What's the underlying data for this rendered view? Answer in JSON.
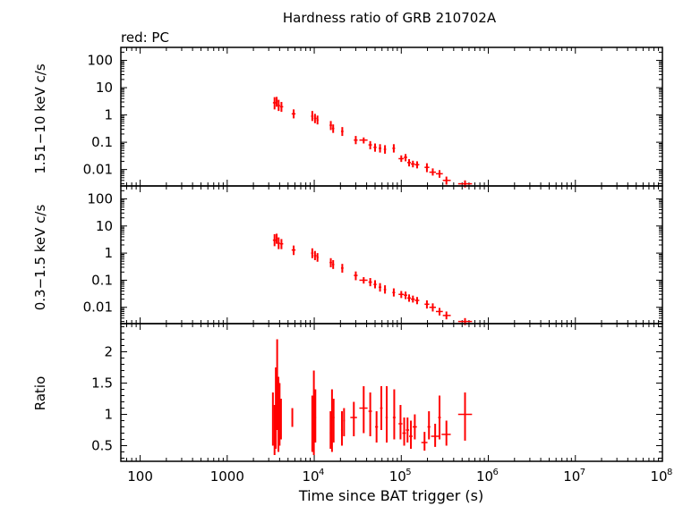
{
  "chart_data": {
    "type": "scatter",
    "title": "Hardness ratio of GRB 210702A",
    "subtitle": "red: PC",
    "xlabel": "Time since BAT trigger (s)",
    "x_scale": "log",
    "xlim": [
      60,
      100000000
    ],
    "x_ticks": [
      {
        "v": 100,
        "base": "100",
        "exp": ""
      },
      {
        "v": 1000,
        "base": "1000",
        "exp": ""
      },
      {
        "v": 10000,
        "base": "10",
        "exp": "4"
      },
      {
        "v": 100000,
        "base": "10",
        "exp": "5"
      },
      {
        "v": 1000000,
        "base": "10",
        "exp": "6"
      },
      {
        "v": 10000000,
        "base": "10",
        "exp": "7"
      },
      {
        "v": 100000000,
        "base": "10",
        "exp": "8"
      }
    ],
    "series_color": "#ff0000",
    "panels": [
      {
        "ylabel": "1.51−10 keV c/s",
        "y_scale": "log",
        "ylim": [
          0.0025,
          300
        ],
        "y_ticks": [
          {
            "v": 100,
            "label": "100"
          },
          {
            "v": 10,
            "label": "10"
          },
          {
            "v": 1,
            "label": "1"
          },
          {
            "v": 0.1,
            "label": "0.1"
          },
          {
            "v": 0.01,
            "label": "0.01"
          }
        ],
        "points": [
          {
            "x": 3500,
            "xlo": 3350,
            "xhi": 3650,
            "y": 2.8,
            "ylo": 1.6,
            "yhi": 4.5
          },
          {
            "x": 3700,
            "xlo": 3650,
            "xhi": 3800,
            "y": 3.2,
            "ylo": 2.0,
            "yhi": 4.6
          },
          {
            "x": 3900,
            "xlo": 3800,
            "xhi": 4050,
            "y": 2.2,
            "ylo": 1.4,
            "yhi": 3.6
          },
          {
            "x": 4200,
            "xlo": 4050,
            "xhi": 4400,
            "y": 2.0,
            "ylo": 1.3,
            "yhi": 3.0
          },
          {
            "x": 5800,
            "xlo": 5500,
            "xhi": 6100,
            "y": 1.1,
            "ylo": 0.75,
            "yhi": 1.6
          },
          {
            "x": 9500,
            "xlo": 9200,
            "xhi": 9800,
            "y": 0.9,
            "ylo": 0.6,
            "yhi": 1.4
          },
          {
            "x": 10200,
            "xlo": 9900,
            "xhi": 10600,
            "y": 0.75,
            "ylo": 0.5,
            "yhi": 1.1
          },
          {
            "x": 10900,
            "xlo": 10600,
            "xhi": 11200,
            "y": 0.65,
            "ylo": 0.45,
            "yhi": 0.95
          },
          {
            "x": 15500,
            "xlo": 15000,
            "xhi": 16000,
            "y": 0.42,
            "ylo": 0.28,
            "yhi": 0.6
          },
          {
            "x": 16500,
            "xlo": 16000,
            "xhi": 17000,
            "y": 0.32,
            "ylo": 0.22,
            "yhi": 0.45
          },
          {
            "x": 21000,
            "xlo": 20300,
            "xhi": 21700,
            "y": 0.25,
            "ylo": 0.17,
            "yhi": 0.36
          },
          {
            "x": 30000,
            "xlo": 28500,
            "xhi": 31500,
            "y": 0.12,
            "ylo": 0.085,
            "yhi": 0.17
          },
          {
            "x": 37000,
            "xlo": 33000,
            "xhi": 41000,
            "y": 0.12,
            "ylo": 0.09,
            "yhi": 0.15
          },
          {
            "x": 44000,
            "xlo": 42000,
            "xhi": 46000,
            "y": 0.08,
            "ylo": 0.055,
            "yhi": 0.11
          },
          {
            "x": 50000,
            "xlo": 48000,
            "xhi": 52000,
            "y": 0.065,
            "ylo": 0.045,
            "yhi": 0.09
          },
          {
            "x": 57000,
            "xlo": 55000,
            "xhi": 59000,
            "y": 0.06,
            "ylo": 0.042,
            "yhi": 0.085
          },
          {
            "x": 65000,
            "xlo": 63000,
            "xhi": 67000,
            "y": 0.055,
            "ylo": 0.038,
            "yhi": 0.078
          },
          {
            "x": 82000,
            "xlo": 79000,
            "xhi": 85000,
            "y": 0.06,
            "ylo": 0.042,
            "yhi": 0.085
          },
          {
            "x": 100000,
            "xlo": 93000,
            "xhi": 107000,
            "y": 0.025,
            "ylo": 0.019,
            "yhi": 0.033
          },
          {
            "x": 112000,
            "xlo": 107000,
            "xhi": 117000,
            "y": 0.028,
            "ylo": 0.02,
            "yhi": 0.037
          },
          {
            "x": 123000,
            "xlo": 117000,
            "xhi": 129000,
            "y": 0.018,
            "ylo": 0.013,
            "yhi": 0.024
          },
          {
            "x": 136000,
            "xlo": 129000,
            "xhi": 143000,
            "y": 0.016,
            "ylo": 0.012,
            "yhi": 0.021
          },
          {
            "x": 152000,
            "xlo": 143000,
            "xhi": 161000,
            "y": 0.015,
            "ylo": 0.011,
            "yhi": 0.02
          },
          {
            "x": 197000,
            "xlo": 185000,
            "xhi": 210000,
            "y": 0.012,
            "ylo": 0.008,
            "yhi": 0.017
          },
          {
            "x": 230000,
            "xlo": 210000,
            "xhi": 250000,
            "y": 0.008,
            "ylo": 0.006,
            "yhi": 0.011
          },
          {
            "x": 275000,
            "xlo": 250000,
            "xhi": 300000,
            "y": 0.007,
            "ylo": 0.005,
            "yhi": 0.0095
          },
          {
            "x": 330000,
            "xlo": 300000,
            "xhi": 370000,
            "y": 0.004,
            "ylo": 0.0028,
            "yhi": 0.0055
          },
          {
            "x": 540000,
            "xlo": 450000,
            "xhi": 650000,
            "y": 0.003,
            "ylo": 0.0022,
            "yhi": 0.004
          }
        ]
      },
      {
        "ylabel": "0.3−1.5 keV c/s",
        "y_scale": "log",
        "ylim": [
          0.0025,
          300
        ],
        "y_ticks": [
          {
            "v": 100,
            "label": "100"
          },
          {
            "v": 10,
            "label": "10"
          },
          {
            "v": 1,
            "label": "1"
          },
          {
            "v": 0.1,
            "label": "0.1"
          },
          {
            "v": 0.01,
            "label": "0.01"
          }
        ],
        "points": [
          {
            "x": 3500,
            "xlo": 3350,
            "xhi": 3650,
            "y": 3.0,
            "ylo": 1.8,
            "yhi": 5.0
          },
          {
            "x": 3700,
            "xlo": 3650,
            "xhi": 3800,
            "y": 3.5,
            "ylo": 2.2,
            "yhi": 5.2
          },
          {
            "x": 3900,
            "xlo": 3800,
            "xhi": 4050,
            "y": 2.3,
            "ylo": 1.4,
            "yhi": 3.8
          },
          {
            "x": 4200,
            "xlo": 4050,
            "xhi": 4400,
            "y": 2.2,
            "ylo": 1.4,
            "yhi": 3.3
          },
          {
            "x": 5800,
            "xlo": 5500,
            "xhi": 6100,
            "y": 1.3,
            "ylo": 0.85,
            "yhi": 1.9
          },
          {
            "x": 9500,
            "xlo": 9200,
            "xhi": 9800,
            "y": 1.0,
            "ylo": 0.65,
            "yhi": 1.5
          },
          {
            "x": 10200,
            "xlo": 9900,
            "xhi": 10600,
            "y": 0.8,
            "ylo": 0.55,
            "yhi": 1.2
          },
          {
            "x": 10900,
            "xlo": 10600,
            "xhi": 11200,
            "y": 0.7,
            "ylo": 0.48,
            "yhi": 1.0
          },
          {
            "x": 15500,
            "xlo": 15000,
            "xhi": 16000,
            "y": 0.45,
            "ylo": 0.3,
            "yhi": 0.65
          },
          {
            "x": 16500,
            "xlo": 16000,
            "xhi": 17000,
            "y": 0.38,
            "ylo": 0.26,
            "yhi": 0.55
          },
          {
            "x": 21000,
            "xlo": 20300,
            "xhi": 21700,
            "y": 0.28,
            "ylo": 0.19,
            "yhi": 0.4
          },
          {
            "x": 30000,
            "xlo": 28500,
            "xhi": 31500,
            "y": 0.15,
            "ylo": 0.1,
            "yhi": 0.21
          },
          {
            "x": 37000,
            "xlo": 33000,
            "xhi": 41000,
            "y": 0.1,
            "ylo": 0.075,
            "yhi": 0.13
          },
          {
            "x": 44000,
            "xlo": 42000,
            "xhi": 46000,
            "y": 0.085,
            "ylo": 0.06,
            "yhi": 0.12
          },
          {
            "x": 50000,
            "xlo": 48000,
            "xhi": 52000,
            "y": 0.07,
            "ylo": 0.05,
            "yhi": 0.1
          },
          {
            "x": 57000,
            "xlo": 55000,
            "xhi": 59000,
            "y": 0.055,
            "ylo": 0.038,
            "yhi": 0.078
          },
          {
            "x": 65000,
            "xlo": 63000,
            "xhi": 67000,
            "y": 0.045,
            "ylo": 0.032,
            "yhi": 0.065
          },
          {
            "x": 82000,
            "xlo": 79000,
            "xhi": 85000,
            "y": 0.035,
            "ylo": 0.025,
            "yhi": 0.05
          },
          {
            "x": 100000,
            "xlo": 93000,
            "xhi": 107000,
            "y": 0.03,
            "ylo": 0.022,
            "yhi": 0.04
          },
          {
            "x": 112000,
            "xlo": 107000,
            "xhi": 117000,
            "y": 0.028,
            "ylo": 0.02,
            "yhi": 0.038
          },
          {
            "x": 123000,
            "xlo": 117000,
            "xhi": 129000,
            "y": 0.022,
            "ylo": 0.016,
            "yhi": 0.03
          },
          {
            "x": 136000,
            "xlo": 129000,
            "xhi": 143000,
            "y": 0.02,
            "ylo": 0.015,
            "yhi": 0.027
          },
          {
            "x": 152000,
            "xlo": 143000,
            "xhi": 161000,
            "y": 0.018,
            "ylo": 0.013,
            "yhi": 0.024
          },
          {
            "x": 197000,
            "xlo": 185000,
            "xhi": 210000,
            "y": 0.013,
            "ylo": 0.009,
            "yhi": 0.018
          },
          {
            "x": 230000,
            "xlo": 210000,
            "xhi": 250000,
            "y": 0.01,
            "ylo": 0.007,
            "yhi": 0.014
          },
          {
            "x": 275000,
            "xlo": 250000,
            "xhi": 300000,
            "y": 0.007,
            "ylo": 0.005,
            "yhi": 0.0095
          },
          {
            "x": 330000,
            "xlo": 300000,
            "xhi": 370000,
            "y": 0.005,
            "ylo": 0.0036,
            "yhi": 0.007
          },
          {
            "x": 540000,
            "xlo": 450000,
            "xhi": 650000,
            "y": 0.003,
            "ylo": 0.0022,
            "yhi": 0.004
          }
        ]
      },
      {
        "ylabel": "Ratio",
        "y_scale": "linear",
        "ylim": [
          0.25,
          2.45
        ],
        "y_ticks": [
          {
            "v": 2,
            "label": "2"
          },
          {
            "v": 1.5,
            "label": "1.5"
          },
          {
            "v": 1,
            "label": "1"
          },
          {
            "v": 0.5,
            "label": "0.5"
          }
        ],
        "points": [
          {
            "x": 3350,
            "xlo": 3300,
            "xhi": 3400,
            "y": 0.95,
            "ylo": 0.5,
            "yhi": 1.35
          },
          {
            "x": 3500,
            "xlo": 3450,
            "xhi": 3550,
            "y": 0.75,
            "ylo": 0.35,
            "yhi": 1.15
          },
          {
            "x": 3620,
            "xlo": 3570,
            "xhi": 3670,
            "y": 0.85,
            "ylo": 0.45,
            "yhi": 1.75
          },
          {
            "x": 3750,
            "xlo": 3700,
            "xhi": 3800,
            "y": 1.45,
            "ylo": 0.75,
            "yhi": 2.2
          },
          {
            "x": 3880,
            "xlo": 3830,
            "xhi": 3930,
            "y": 0.9,
            "ylo": 0.4,
            "yhi": 1.6
          },
          {
            "x": 4000,
            "xlo": 3950,
            "xhi": 4050,
            "y": 1.0,
            "ylo": 0.5,
            "yhi": 1.5
          },
          {
            "x": 4150,
            "xlo": 4100,
            "xhi": 4200,
            "y": 0.9,
            "ylo": 0.6,
            "yhi": 1.25
          },
          {
            "x": 5600,
            "xlo": 5500,
            "xhi": 5700,
            "y": 0.95,
            "ylo": 0.8,
            "yhi": 1.1
          },
          {
            "x": 9500,
            "xlo": 9300,
            "xhi": 9700,
            "y": 0.85,
            "ylo": 0.4,
            "yhi": 1.3
          },
          {
            "x": 9900,
            "xlo": 9700,
            "xhi": 10100,
            "y": 1.0,
            "ylo": 0.35,
            "yhi": 1.7
          },
          {
            "x": 10300,
            "xlo": 10100,
            "xhi": 10500,
            "y": 0.95,
            "ylo": 0.55,
            "yhi": 1.4
          },
          {
            "x": 15400,
            "xlo": 15100,
            "xhi": 15700,
            "y": 0.7,
            "ylo": 0.45,
            "yhi": 1.05
          },
          {
            "x": 16000,
            "xlo": 15700,
            "xhi": 16300,
            "y": 0.9,
            "ylo": 0.4,
            "yhi": 1.4
          },
          {
            "x": 16700,
            "xlo": 16300,
            "xhi": 17100,
            "y": 0.95,
            "ylo": 0.55,
            "yhi": 1.25
          },
          {
            "x": 20800,
            "xlo": 20300,
            "xhi": 21300,
            "y": 0.75,
            "ylo": 0.5,
            "yhi": 1.05
          },
          {
            "x": 22000,
            "xlo": 21500,
            "xhi": 22500,
            "y": 0.9,
            "ylo": 0.65,
            "yhi": 1.1
          },
          {
            "x": 28500,
            "xlo": 26000,
            "xhi": 31000,
            "y": 0.95,
            "ylo": 0.65,
            "yhi": 1.2
          },
          {
            "x": 37000,
            "xlo": 33000,
            "xhi": 41000,
            "y": 1.1,
            "ylo": 0.7,
            "yhi": 1.45
          },
          {
            "x": 44000,
            "xlo": 42000,
            "xhi": 46000,
            "y": 1.05,
            "ylo": 0.65,
            "yhi": 1.35
          },
          {
            "x": 52000,
            "xlo": 50000,
            "xhi": 54000,
            "y": 0.8,
            "ylo": 0.55,
            "yhi": 1.05
          },
          {
            "x": 59000,
            "xlo": 57000,
            "xhi": 61000,
            "y": 1.1,
            "ylo": 0.75,
            "yhi": 1.45
          },
          {
            "x": 68000,
            "xlo": 66000,
            "xhi": 70000,
            "y": 0.95,
            "ylo": 0.55,
            "yhi": 1.45
          },
          {
            "x": 83000,
            "xlo": 80000,
            "xhi": 86000,
            "y": 0.95,
            "ylo": 0.6,
            "yhi": 1.4
          },
          {
            "x": 98000,
            "xlo": 93000,
            "xhi": 103000,
            "y": 0.85,
            "ylo": 0.6,
            "yhi": 1.15
          },
          {
            "x": 108000,
            "xlo": 103000,
            "xhi": 113000,
            "y": 0.7,
            "ylo": 0.5,
            "yhi": 0.95
          },
          {
            "x": 118000,
            "xlo": 113000,
            "xhi": 123000,
            "y": 0.75,
            "ylo": 0.55,
            "yhi": 0.95
          },
          {
            "x": 129000,
            "xlo": 123000,
            "xhi": 135000,
            "y": 0.65,
            "ylo": 0.45,
            "yhi": 0.9
          },
          {
            "x": 143000,
            "xlo": 135000,
            "xhi": 151000,
            "y": 0.8,
            "ylo": 0.6,
            "yhi": 1.0
          },
          {
            "x": 185000,
            "xlo": 170000,
            "xhi": 200000,
            "y": 0.55,
            "ylo": 0.42,
            "yhi": 0.72
          },
          {
            "x": 208000,
            "xlo": 200000,
            "xhi": 216000,
            "y": 0.8,
            "ylo": 0.6,
            "yhi": 1.05
          },
          {
            "x": 245000,
            "xlo": 220000,
            "xhi": 270000,
            "y": 0.65,
            "ylo": 0.48,
            "yhi": 0.85
          },
          {
            "x": 275000,
            "xlo": 265000,
            "xhi": 285000,
            "y": 0.95,
            "ylo": 0.6,
            "yhi": 1.3
          },
          {
            "x": 330000,
            "xlo": 290000,
            "xhi": 370000,
            "y": 0.68,
            "ylo": 0.5,
            "yhi": 0.9
          },
          {
            "x": 540000,
            "xlo": 450000,
            "xhi": 650000,
            "y": 1.0,
            "ylo": 0.58,
            "yhi": 1.35
          }
        ]
      }
    ]
  }
}
